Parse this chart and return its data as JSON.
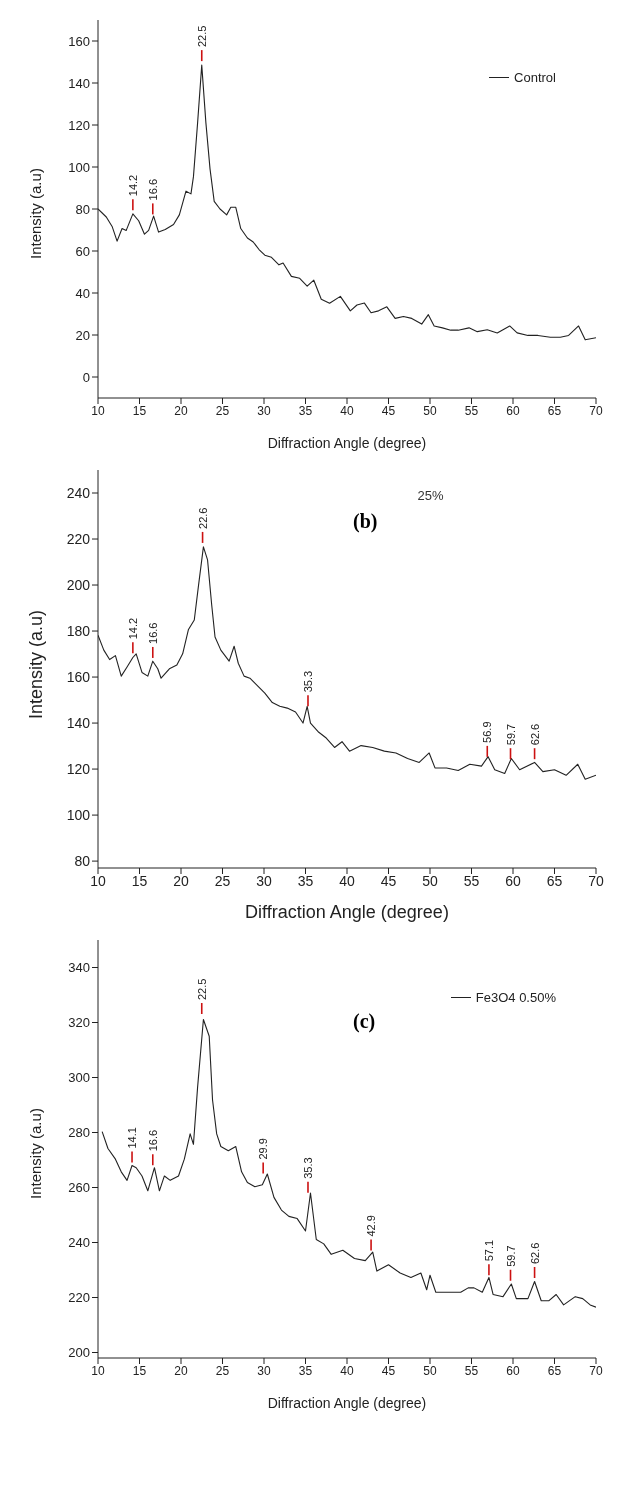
{
  "chart_data": [
    {
      "type": "line",
      "xlabel": "Diffraction Angle (degree)",
      "ylabel": "Intensity (a.u)",
      "xlim": [
        10,
        70
      ],
      "ylim": [
        -10,
        170
      ],
      "xticks": [
        10,
        15,
        20,
        25,
        30,
        35,
        40,
        45,
        50,
        55,
        60,
        65,
        70
      ],
      "yticks": [
        0,
        20,
        40,
        60,
        80,
        100,
        120,
        140,
        160
      ],
      "legend": "top right",
      "marker": "none",
      "line_style": "solid",
      "series": [
        {
          "name": "Control",
          "color": "#222222",
          "x": [
            10,
            11,
            11.7,
            12.3,
            12.9,
            13.4,
            14.2,
            14.9,
            15.6,
            16.1,
            16.7,
            17.3,
            18.1,
            19.1,
            19.8,
            20.6,
            21.2,
            21.5,
            22,
            22.5,
            23,
            23.5,
            24,
            24.7,
            25.5,
            26,
            26.6,
            27.2,
            28,
            28.7,
            29.4,
            30.1,
            30.9,
            31.8,
            32.3,
            33.3,
            34.3,
            35.2,
            36,
            36.9,
            37.9,
            39.2,
            40.4,
            41.2,
            42.1,
            42.9,
            43.8,
            44.8,
            45.8,
            46.8,
            47.8,
            49,
            49.8,
            50.5,
            51.5,
            52.5,
            53.4,
            54.7,
            55.7,
            56.9,
            58.1,
            59.6,
            60.5,
            61.8,
            63,
            64.5,
            65.7,
            66.7,
            67.9,
            68.7,
            70
          ],
          "values": [
            80,
            76.2,
            71.7,
            64.7,
            70.7,
            69.8,
            77.7,
            74.4,
            68,
            69.8,
            76.6,
            69,
            70.2,
            72.6,
            77.2,
            88.5,
            87.2,
            95.4,
            121,
            148.5,
            121,
            99,
            83.6,
            80,
            77.2,
            80.8,
            80.8,
            70.7,
            66.2,
            64.3,
            60.7,
            58,
            57,
            53.4,
            54.3,
            47.9,
            47,
            43.3,
            46.1,
            37,
            35.1,
            38.4,
            31.5,
            34.3,
            35.2,
            30.6,
            31.5,
            33.4,
            27.9,
            28.8,
            27.9,
            25.2,
            29.7,
            24.3,
            23.4,
            22.3,
            22.3,
            23.4,
            21.6,
            22.5,
            21,
            24.3,
            21,
            19.8,
            19.8,
            18.9,
            18.9,
            19.8,
            24.3,
            17.7,
            18.7
          ]
        }
      ],
      "annotations": [
        {
          "text": "14.2",
          "x": 14.2,
          "y": 78
        },
        {
          "text": "16.6",
          "x": 16.6,
          "y": 76
        },
        {
          "text": "22.5",
          "x": 22.5,
          "y": 149
        }
      ]
    },
    {
      "type": "line",
      "xlabel": "Diffraction Angle (degree)",
      "ylabel": "Intensity (a.u)",
      "xlim": [
        10,
        70
      ],
      "ylim": [
        77,
        250
      ],
      "xticks": [
        10,
        15,
        20,
        25,
        30,
        35,
        40,
        45,
        50,
        55,
        60,
        65,
        70
      ],
      "yticks": [
        80,
        100,
        120,
        140,
        160,
        180,
        200,
        220,
        240
      ],
      "marker": "none",
      "line_style": "solid",
      "series": [
        {
          "color": "#222222",
          "x": [
            10,
            10.7,
            11.4,
            12.1,
            12.8,
            13.5,
            14.2,
            14.6,
            15.3,
            16,
            16.6,
            17.2,
            17.6,
            18.6,
            19.5,
            20.2,
            20.9,
            21.6,
            22.1,
            22.7,
            23.2,
            23.7,
            24.1,
            24.8,
            25.8,
            26.4,
            26.9,
            27.6,
            28.3,
            29.2,
            30.1,
            31,
            31.9,
            32.8,
            33.8,
            34.7,
            35.2,
            35.6,
            36.6,
            37.5,
            38.5,
            39.4,
            40.3,
            41.7,
            43.1,
            44.5,
            45.9,
            47.3,
            48.7,
            49.9,
            50.6,
            52,
            53.4,
            54.8,
            56.2,
            57,
            57.8,
            59,
            59.8,
            60.8,
            62.6,
            63.6,
            65,
            66.4,
            67.8,
            68.7,
            70
          ],
          "values": [
            178.2,
            171.7,
            167.6,
            169.3,
            160.4,
            164.4,
            168.5,
            170.1,
            162,
            160.4,
            166.9,
            163.6,
            159.5,
            163.6,
            165.2,
            170.1,
            180.7,
            184.8,
            199.5,
            216.6,
            210.9,
            191.3,
            177.4,
            171.7,
            166.9,
            173.4,
            166,
            160.4,
            159.5,
            156.3,
            153,
            148.9,
            147.3,
            146.5,
            144.8,
            140,
            147.3,
            140,
            136,
            133.5,
            129.4,
            131.9,
            127.8,
            130.2,
            129.4,
            127.8,
            127,
            124.6,
            122.9,
            127,
            120.5,
            120.5,
            119.4,
            122.1,
            121.3,
            125.4,
            119.7,
            118.1,
            124.6,
            119.7,
            122.9,
            118.9,
            119.7,
            117.3,
            122.1,
            115.6,
            117.3
          ]
        }
      ],
      "annotations": [
        "(b)",
        "25%",
        {
          "text": "14.2",
          "x": 14.2,
          "y": 169
        },
        {
          "text": "16.6",
          "x": 16.6,
          "y": 167
        },
        {
          "text": "22.6",
          "x": 22.6,
          "y": 217
        },
        {
          "text": "35.3",
          "x": 35.3,
          "y": 146
        },
        {
          "text": "56.9",
          "x": 56.9,
          "y": 124
        },
        {
          "text": "59.7",
          "x": 59.7,
          "y": 123
        },
        {
          "text": "62.6",
          "x": 62.6,
          "y": 123
        }
      ]
    },
    {
      "type": "line",
      "xlabel": "Diffraction Angle (degree)",
      "ylabel": "Intensity (a.u)",
      "xlim": [
        10,
        70
      ],
      "ylim": [
        198,
        350
      ],
      "xticks": [
        10,
        15,
        20,
        25,
        30,
        35,
        40,
        45,
        50,
        55,
        60,
        65,
        70
      ],
      "yticks": [
        200,
        220,
        240,
        260,
        280,
        300,
        320,
        340
      ],
      "legend": "top right",
      "marker": "none",
      "line_style": "solid",
      "series": [
        {
          "name": "Fe3O4 0.50%",
          "color": "#222222",
          "x": [
            10.5,
            11.2,
            12.1,
            12.8,
            13.5,
            14.1,
            14.6,
            15.3,
            16,
            16.8,
            17.4,
            18,
            18.7,
            19.7,
            20.4,
            21.1,
            21.5,
            22,
            22.7,
            23.4,
            23.8,
            24.3,
            24.8,
            25.7,
            26.6,
            27.3,
            28,
            28.9,
            29.8,
            30.4,
            31.2,
            32.1,
            33,
            34,
            35,
            35.6,
            36.3,
            37.2,
            38.1,
            39.5,
            40.9,
            42.2,
            43.1,
            43.6,
            45,
            46.4,
            47.7,
            48.9,
            49.6,
            50,
            50.7,
            52.3,
            53.7,
            54.6,
            55.3,
            56.3,
            57.1,
            57.6,
            58.8,
            59.8,
            60.4,
            61.8,
            62.6,
            63.4,
            64.3,
            65.2,
            66.1,
            67.5,
            68.4,
            69.3,
            70
          ],
          "values": [
            280.3,
            274.2,
            270.3,
            265.7,
            262.6,
            268,
            267.2,
            264.2,
            258.8,
            267.2,
            258.8,
            264.2,
            262.6,
            264.2,
            270.3,
            279.5,
            275.7,
            296.5,
            321.1,
            315,
            291.8,
            279.5,
            274.9,
            273.4,
            274.9,
            265.7,
            261.8,
            260.3,
            261,
            264.9,
            256.4,
            251.8,
            249.5,
            248.7,
            244.2,
            258,
            241.1,
            239.5,
            235.7,
            237.2,
            234.2,
            233.4,
            236.5,
            229.6,
            231.9,
            228.9,
            227.3,
            228.9,
            222.8,
            228.1,
            221.9,
            221.9,
            221.9,
            223.5,
            223.5,
            221.9,
            227.3,
            221.1,
            220.3,
            224.9,
            219.6,
            219.6,
            225.8,
            218.8,
            218.8,
            221.1,
            217.3,
            220.3,
            219.6,
            217.3,
            216.5
          ]
        }
      ],
      "annotations": [
        "(c)",
        {
          "text": "14.1",
          "x": 14.1,
          "y": 268
        },
        {
          "text": "16.6",
          "x": 16.6,
          "y": 267
        },
        {
          "text": "22.5",
          "x": 22.5,
          "y": 322
        },
        {
          "text": "29.9",
          "x": 29.9,
          "y": 264
        },
        {
          "text": "35.3",
          "x": 35.3,
          "y": 257
        },
        {
          "text": "42.9",
          "x": 42.9,
          "y": 236
        },
        {
          "text": "57.1",
          "x": 57.1,
          "y": 227
        },
        {
          "text": "59.7",
          "x": 59.7,
          "y": 225
        },
        {
          "text": "62.6",
          "x": 62.6,
          "y": 226
        }
      ]
    }
  ]
}
